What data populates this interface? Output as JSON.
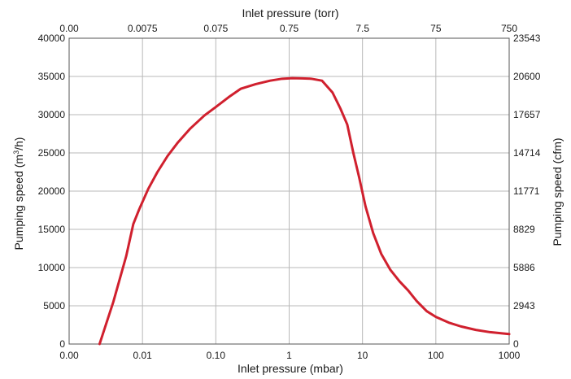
{
  "chart_data": {
    "type": "line",
    "title": "",
    "x_scale": "log",
    "xlim": [
      0.001,
      1000
    ],
    "ylim": [
      0,
      40000
    ],
    "grid": true,
    "xlabel_bottom": "Inlet pressure (mbar)",
    "xlabel_top": "Inlet pressure (torr)",
    "ylabel_left_prefix": "Pumping speed (m",
    "ylabel_left_sup": "3",
    "ylabel_left_suffix": "/h)",
    "ylabel_right": "Pumping speed (cfm)",
    "x_ticks_bottom": [
      {
        "value": 0.001,
        "label": "0.00"
      },
      {
        "value": 0.01,
        "label": "0.01"
      },
      {
        "value": 0.1,
        "label": "0.10"
      },
      {
        "value": 1,
        "label": "1"
      },
      {
        "value": 10,
        "label": "10"
      },
      {
        "value": 100,
        "label": "100"
      },
      {
        "value": 1000,
        "label": "1000"
      }
    ],
    "x_ticks_top": [
      {
        "value": 0.001,
        "label": "0.00"
      },
      {
        "value": 0.01,
        "label": "0.0075"
      },
      {
        "value": 0.1,
        "label": "0.075"
      },
      {
        "value": 1,
        "label": "0.75"
      },
      {
        "value": 10,
        "label": "7.5"
      },
      {
        "value": 100,
        "label": "75"
      },
      {
        "value": 1000,
        "label": "750"
      }
    ],
    "y_ticks_left": [
      {
        "value": 0,
        "label": "0"
      },
      {
        "value": 5000,
        "label": "5000"
      },
      {
        "value": 10000,
        "label": "10000"
      },
      {
        "value": 15000,
        "label": "15000"
      },
      {
        "value": 20000,
        "label": "20000"
      },
      {
        "value": 25000,
        "label": "25000"
      },
      {
        "value": 30000,
        "label": "30000"
      },
      {
        "value": 35000,
        "label": "35000"
      },
      {
        "value": 40000,
        "label": "40000"
      }
    ],
    "y_ticks_right": [
      {
        "value": 0,
        "label": "0"
      },
      {
        "value": 5000,
        "label": "2943"
      },
      {
        "value": 10000,
        "label": "5886"
      },
      {
        "value": 15000,
        "label": "8829"
      },
      {
        "value": 20000,
        "label": "11771"
      },
      {
        "value": 25000,
        "label": "14714"
      },
      {
        "value": 30000,
        "label": "17657"
      },
      {
        "value": 35000,
        "label": "20600"
      },
      {
        "value": 40000,
        "label": "23543"
      }
    ],
    "series": [
      {
        "color": "#d0202e",
        "x": [
          0.0026,
          0.004,
          0.006,
          0.0075,
          0.009,
          0.012,
          0.016,
          0.022,
          0.03,
          0.045,
          0.07,
          0.1,
          0.15,
          0.22,
          0.35,
          0.55,
          0.8,
          1.1,
          1.5,
          2.0,
          2.8,
          3.9,
          5.0,
          6.2,
          7.5,
          9.0,
          11,
          14,
          18,
          24,
          32,
          42,
          55,
          75,
          100,
          150,
          220,
          350,
          550,
          800,
          1000
        ],
        "y": [
          0,
          5500,
          11500,
          15700,
          17600,
          20300,
          22500,
          24600,
          26300,
          28200,
          29900,
          31000,
          32300,
          33400,
          34000,
          34450,
          34700,
          34780,
          34750,
          34700,
          34450,
          32900,
          30800,
          28700,
          25000,
          21800,
          18000,
          14500,
          11800,
          9700,
          8200,
          7000,
          5600,
          4300,
          3550,
          2800,
          2300,
          1850,
          1550,
          1400,
          1300
        ]
      }
    ]
  }
}
